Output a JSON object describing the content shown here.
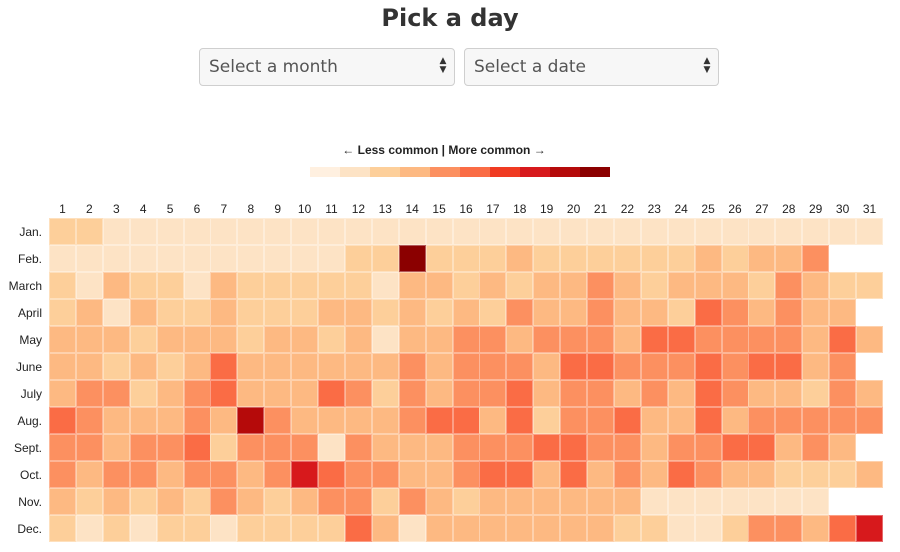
{
  "title": "Pick a day",
  "controls": {
    "month_placeholder": "Select a month",
    "date_placeholder": "Select a date"
  },
  "legend": {
    "label": "← Less common | More common →",
    "colors": [
      "#fff0e0",
      "#fde3c5",
      "#fdcf9a",
      "#fdb982",
      "#fc9060",
      "#fa6c45",
      "#f03b22",
      "#d7191c",
      "#b50a0a",
      "#8b0000"
    ]
  },
  "days": [
    "1",
    "2",
    "3",
    "4",
    "5",
    "6",
    "7",
    "8",
    "9",
    "10",
    "11",
    "12",
    "13",
    "14",
    "15",
    "16",
    "17",
    "18",
    "19",
    "20",
    "21",
    "22",
    "23",
    "24",
    "25",
    "26",
    "27",
    "28",
    "29",
    "30",
    "31"
  ],
  "months": [
    "Jan.",
    "Feb.",
    "March",
    "April",
    "May",
    "June",
    "July",
    "Aug.",
    "Sept.",
    "Oct.",
    "Nov.",
    "Dec."
  ],
  "chart_data": {
    "type": "heatmap",
    "scale": "0 = less common, 9 = more common; null = date does not exist",
    "rows": [
      [
        2,
        2,
        1,
        1,
        1,
        1,
        1,
        1,
        1,
        1,
        1,
        1,
        1,
        1,
        1,
        1,
        1,
        1,
        1,
        1,
        1,
        1,
        1,
        1,
        1,
        1,
        1,
        1,
        1,
        1,
        1
      ],
      [
        1,
        1,
        1,
        1,
        1,
        1,
        1,
        1,
        1,
        1,
        1,
        2,
        2,
        9,
        2,
        2,
        2,
        3,
        2,
        2,
        2,
        2,
        2,
        2,
        3,
        2,
        3,
        3,
        4,
        null,
        null
      ],
      [
        2,
        1,
        3,
        2,
        2,
        1,
        3,
        2,
        2,
        2,
        2,
        2,
        1,
        3,
        3,
        2,
        3,
        2,
        3,
        3,
        4,
        3,
        2,
        3,
        3,
        3,
        2,
        4,
        3,
        2,
        2
      ],
      [
        2,
        3,
        1,
        3,
        2,
        2,
        3,
        2,
        2,
        2,
        3,
        3,
        2,
        3,
        2,
        3,
        2,
        4,
        3,
        3,
        4,
        3,
        3,
        2,
        5,
        4,
        3,
        4,
        3,
        3,
        null
      ],
      [
        3,
        3,
        3,
        2,
        3,
        3,
        3,
        2,
        3,
        3,
        2,
        3,
        1,
        3,
        3,
        4,
        4,
        3,
        4,
        4,
        4,
        3,
        5,
        5,
        4,
        4,
        4,
        4,
        3,
        5,
        3
      ],
      [
        3,
        3,
        2,
        3,
        2,
        3,
        5,
        3,
        3,
        3,
        3,
        3,
        3,
        4,
        3,
        4,
        4,
        4,
        3,
        5,
        5,
        4,
        4,
        4,
        5,
        4,
        5,
        5,
        3,
        4,
        null
      ],
      [
        3,
        4,
        4,
        2,
        3,
        4,
        5,
        3,
        3,
        3,
        5,
        4,
        2,
        4,
        3,
        4,
        4,
        5,
        3,
        4,
        4,
        3,
        4,
        3,
        5,
        4,
        3,
        3,
        2,
        4,
        3
      ],
      [
        5,
        4,
        3,
        3,
        3,
        4,
        3,
        8,
        4,
        3,
        3,
        3,
        3,
        4,
        5,
        5,
        3,
        5,
        2,
        4,
        4,
        5,
        3,
        3,
        5,
        3,
        4,
        4,
        4,
        4,
        4
      ],
      [
        4,
        4,
        3,
        4,
        4,
        5,
        2,
        4,
        4,
        4,
        1,
        4,
        3,
        3,
        3,
        4,
        4,
        4,
        5,
        5,
        4,
        4,
        3,
        4,
        4,
        5,
        5,
        3,
        4,
        3,
        null
      ],
      [
        4,
        3,
        4,
        4,
        3,
        4,
        4,
        3,
        4,
        7,
        5,
        4,
        4,
        3,
        3,
        4,
        5,
        5,
        3,
        5,
        3,
        4,
        3,
        5,
        4,
        3,
        3,
        2,
        2,
        2,
        3
      ],
      [
        3,
        2,
        3,
        2,
        3,
        2,
        4,
        3,
        2,
        3,
        4,
        4,
        2,
        4,
        3,
        2,
        3,
        3,
        3,
        3,
        3,
        3,
        1,
        1,
        1,
        1,
        1,
        1,
        1,
        null,
        null
      ],
      [
        2,
        1,
        2,
        1,
        2,
        2,
        1,
        2,
        2,
        2,
        2,
        5,
        3,
        1,
        3,
        3,
        3,
        3,
        3,
        3,
        3,
        2,
        2,
        1,
        1,
        2,
        4,
        4,
        3,
        5,
        7
      ]
    ]
  }
}
